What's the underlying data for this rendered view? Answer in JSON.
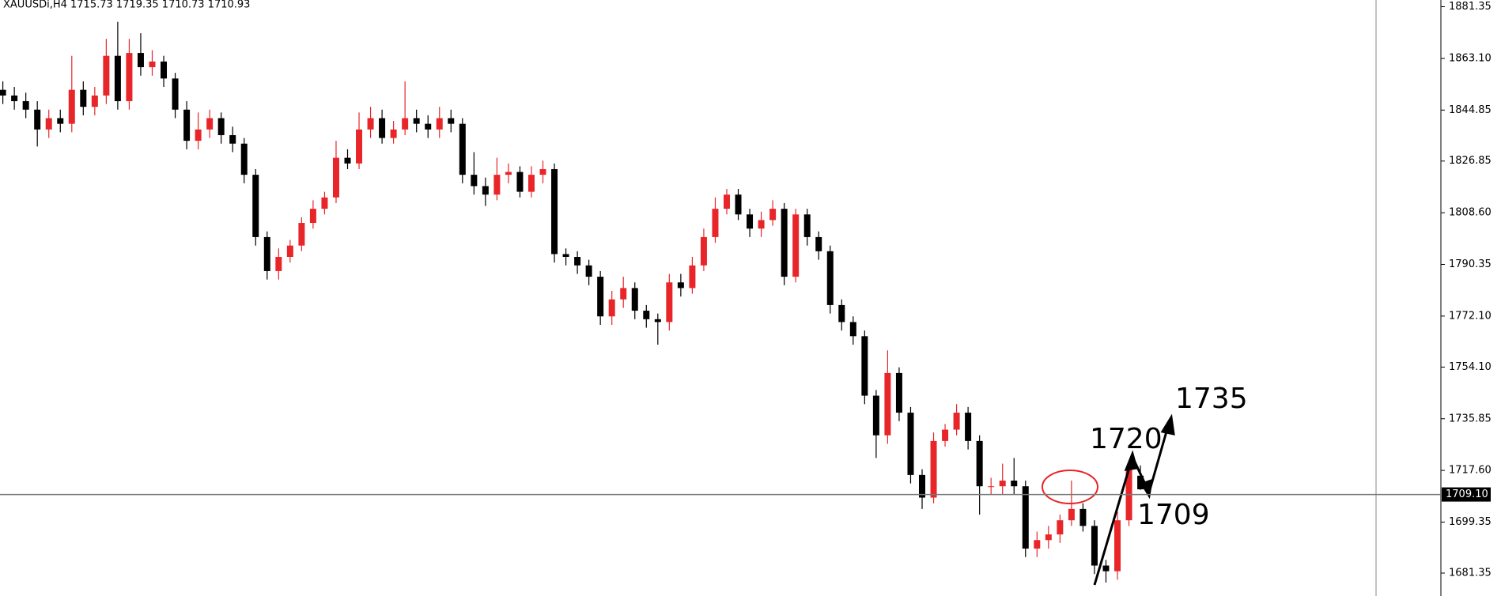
{
  "chart_data": {
    "type": "candlestick",
    "header": "XAUUSDi,H4  1715.73 1719.35 1710.73 1710.93",
    "up_color": "#e8262a",
    "down_color": "#000000",
    "ylim": [
      1681.35,
      1881.35
    ],
    "yticks": [
      {
        "value": 1881.35,
        "label": "1881.35"
      },
      {
        "value": 1863.1,
        "label": "1863.10"
      },
      {
        "value": 1844.85,
        "label": "1844.85"
      },
      {
        "value": 1826.85,
        "label": "1826.85"
      },
      {
        "value": 1808.6,
        "label": "1808.60"
      },
      {
        "value": 1790.35,
        "label": "1790.35"
      },
      {
        "value": 1772.1,
        "label": "1772.10"
      },
      {
        "value": 1754.1,
        "label": "1754.10"
      },
      {
        "value": 1735.85,
        "label": "1735.85"
      },
      {
        "value": 1717.6,
        "label": "1717.60"
      },
      {
        "value": 1699.35,
        "label": "1699.35"
      },
      {
        "value": 1681.35,
        "label": "1681.35"
      }
    ],
    "last_price": {
      "value": 1709.1,
      "label": "1709.10"
    },
    "annotations": [
      "1720",
      "1735",
      "1709"
    ],
    "open": [
      1852,
      1850,
      1848,
      1845,
      1838,
      1842,
      1840,
      1852,
      1846,
      1850,
      1864,
      1848,
      1865,
      1860,
      1862,
      1856,
      1845,
      1834,
      1838,
      1842,
      1836,
      1833,
      1822,
      1800,
      1788,
      1793,
      1797,
      1805,
      1810,
      1814,
      1828,
      1826,
      1838,
      1842,
      1835,
      1838,
      1842,
      1840,
      1838,
      1842,
      1840,
      1822,
      1818,
      1815,
      1822,
      1823,
      1816,
      1822,
      1824,
      1794,
      1793,
      1790,
      1786,
      1772,
      1778,
      1782,
      1774,
      1771,
      1770,
      1784,
      1782,
      1790,
      1800,
      1810,
      1815,
      1808,
      1803,
      1806,
      1810,
      1786,
      1808,
      1800,
      1795,
      1776,
      1770,
      1765,
      1744,
      1730,
      1752,
      1738,
      1716,
      1708,
      1728,
      1732,
      1738,
      1728,
      1712,
      1712,
      1714,
      1712,
      1690,
      1693,
      1695,
      1700,
      1704,
      1698,
      1684,
      1682,
      1700,
      1715.73
    ],
    "high": [
      1855,
      1853,
      1851,
      1848,
      1845,
      1845,
      1864,
      1855,
      1853,
      1870,
      1876,
      1870,
      1872,
      1866,
      1864,
      1858,
      1848,
      1844,
      1845,
      1844,
      1839,
      1835,
      1824,
      1802,
      1796,
      1799,
      1807,
      1813,
      1816,
      1834,
      1831,
      1844,
      1846,
      1845,
      1841,
      1855,
      1845,
      1843,
      1846,
      1845,
      1842,
      1830,
      1821,
      1828,
      1826,
      1825,
      1825,
      1827,
      1826,
      1796,
      1795,
      1792,
      1788,
      1781,
      1786,
      1784,
      1776,
      1773,
      1787,
      1787,
      1793,
      1803,
      1814,
      1817,
      1817,
      1810,
      1809,
      1813,
      1812,
      1810,
      1810,
      1802,
      1797,
      1778,
      1772,
      1767,
      1746,
      1760,
      1754,
      1740,
      1718,
      1731,
      1734,
      1741,
      1740,
      1730,
      1715,
      1720,
      1722,
      1714,
      1696,
      1698,
      1702,
      1714,
      1706,
      1700,
      1686,
      1703,
      1721,
      1719.35
    ],
    "low": [
      1847,
      1845,
      1842,
      1832,
      1835,
      1837,
      1837,
      1843,
      1843,
      1847,
      1845,
      1845,
      1857,
      1857,
      1853,
      1842,
      1831,
      1831,
      1835,
      1833,
      1830,
      1819,
      1797,
      1785,
      1785,
      1791,
      1795,
      1803,
      1808,
      1812,
      1824,
      1824,
      1835,
      1833,
      1833,
      1836,
      1837,
      1835,
      1835,
      1837,
      1819,
      1815,
      1811,
      1813,
      1819,
      1814,
      1814,
      1819,
      1791,
      1790,
      1787,
      1783,
      1769,
      1769,
      1775,
      1771,
      1768,
      1762,
      1767,
      1779,
      1780,
      1788,
      1798,
      1808,
      1806,
      1800,
      1800,
      1804,
      1783,
      1784,
      1797,
      1792,
      1773,
      1767,
      1762,
      1741,
      1722,
      1727,
      1735,
      1713,
      1704,
      1706,
      1726,
      1730,
      1725,
      1702,
      1709,
      1709,
      1709,
      1687,
      1687,
      1690,
      1692,
      1698,
      1696,
      1681,
      1678,
      1679,
      1698,
      1710.73
    ],
    "close": [
      1850,
      1848,
      1845,
      1838,
      1842,
      1840,
      1852,
      1846,
      1850,
      1864,
      1848,
      1865,
      1860,
      1862,
      1856,
      1845,
      1834,
      1838,
      1842,
      1836,
      1833,
      1822,
      1800,
      1788,
      1793,
      1797,
      1805,
      1810,
      1814,
      1828,
      1826,
      1838,
      1842,
      1835,
      1838,
      1842,
      1840,
      1838,
      1842,
      1840,
      1822,
      1818,
      1815,
      1822,
      1823,
      1816,
      1822,
      1824,
      1794,
      1793,
      1790,
      1786,
      1772,
      1778,
      1782,
      1774,
      1771,
      1770,
      1784,
      1782,
      1790,
      1800,
      1810,
      1815,
      1808,
      1803,
      1806,
      1810,
      1786,
      1808,
      1800,
      1795,
      1776,
      1770,
      1765,
      1744,
      1730,
      1752,
      1738,
      1716,
      1708,
      1728,
      1732,
      1738,
      1728,
      1712,
      1712,
      1714,
      1712,
      1690,
      1693,
      1695,
      1700,
      1704,
      1698,
      1684,
      1682,
      1700,
      1718,
      1710.93
    ]
  }
}
